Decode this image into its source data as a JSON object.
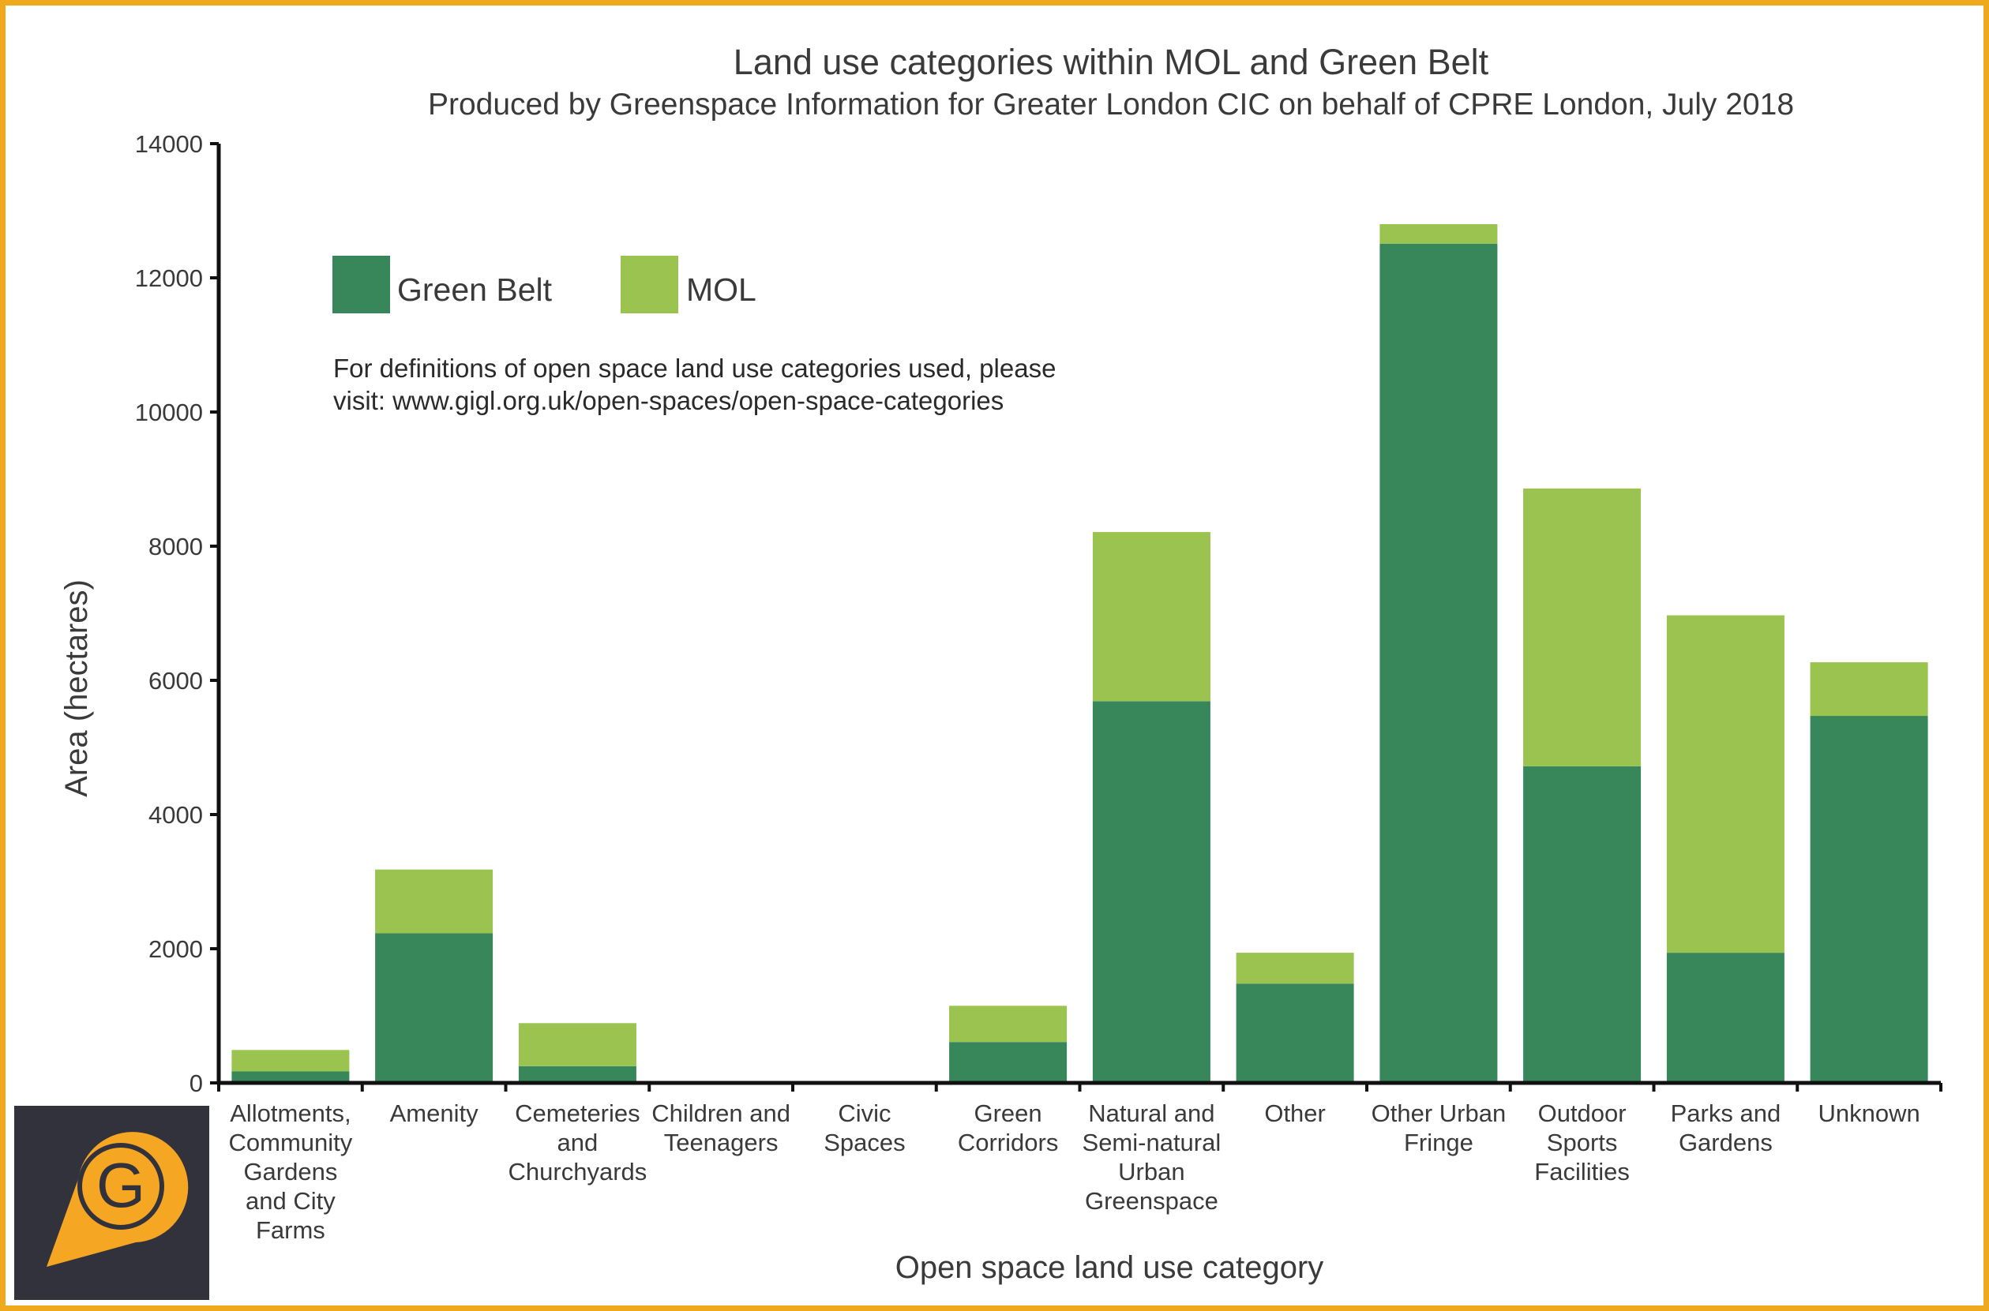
{
  "chart_data": {
    "type": "bar",
    "stacked": true,
    "title": "Land use categories within MOL and Green Belt",
    "subtitle": "Produced by Greenspace Information for Greater London CIC on behalf of CPRE London, July 2018",
    "xlabel": "Open space land use category",
    "ylabel": "Area (hectares)",
    "ylim": [
      0,
      14000
    ],
    "yticks": [
      0,
      2000,
      4000,
      6000,
      8000,
      10000,
      12000,
      14000
    ],
    "ytick_labels": [
      "0",
      "2000",
      "4000",
      "6000",
      "8000",
      "10000",
      "12000",
      "14000"
    ],
    "categories": [
      "Allotments, Community Gardens and City Farms",
      "Amenity",
      "Cemeteries and Churchyards",
      "Children and Teenagers",
      "Civic Spaces",
      "Green Corridors",
      "Natural and Semi-natural Urban Greenspace",
      "Other",
      "Other Urban Fringe",
      "Outdoor Sports Facilities",
      "Parks and Gardens",
      "Unknown"
    ],
    "category_label_lines": [
      [
        "Allotments,",
        "Community",
        "Gardens",
        "and City",
        "Farms"
      ],
      [
        "Amenity"
      ],
      [
        "Cemeteries",
        "and",
        "Churchyards"
      ],
      [
        "Children and",
        "Teenagers"
      ],
      [
        "Civic",
        "Spaces"
      ],
      [
        "Green",
        "Corridors"
      ],
      [
        "Natural and",
        "Semi-natural",
        "Urban",
        "Greenspace"
      ],
      [
        "Other"
      ],
      [
        "Other Urban",
        "Fringe"
      ],
      [
        "Outdoor",
        "Sports",
        "Facilities"
      ],
      [
        "Parks and",
        "Gardens"
      ],
      [
        "Unknown"
      ]
    ],
    "series": [
      {
        "name": "Green Belt",
        "color": "#37875a",
        "values": [
          170,
          2230,
          250,
          0,
          0,
          610,
          5690,
          1480,
          12510,
          4720,
          1940,
          5470
        ]
      },
      {
        "name": "MOL",
        "color": "#9bc34f",
        "values": [
          320,
          950,
          640,
          0,
          0,
          540,
          2520,
          460,
          290,
          4140,
          5030,
          800
        ]
      }
    ],
    "legend": {
      "placement": "top-left",
      "entries": [
        "Green Belt",
        "MOL"
      ]
    },
    "annotation_lines": [
      "For definitions of open space land use categories used, please",
      "visit: www.gigl.org.uk/open-spaces/open-space-categories"
    ],
    "grid": false
  },
  "colors": {
    "frame_border": "#f0a91c",
    "logo_background": "#32323d",
    "logo_accent": "#f5a623",
    "axis": "#111111"
  },
  "logo": {
    "icon": "gigl-location-pin-icon",
    "letter": "G"
  }
}
